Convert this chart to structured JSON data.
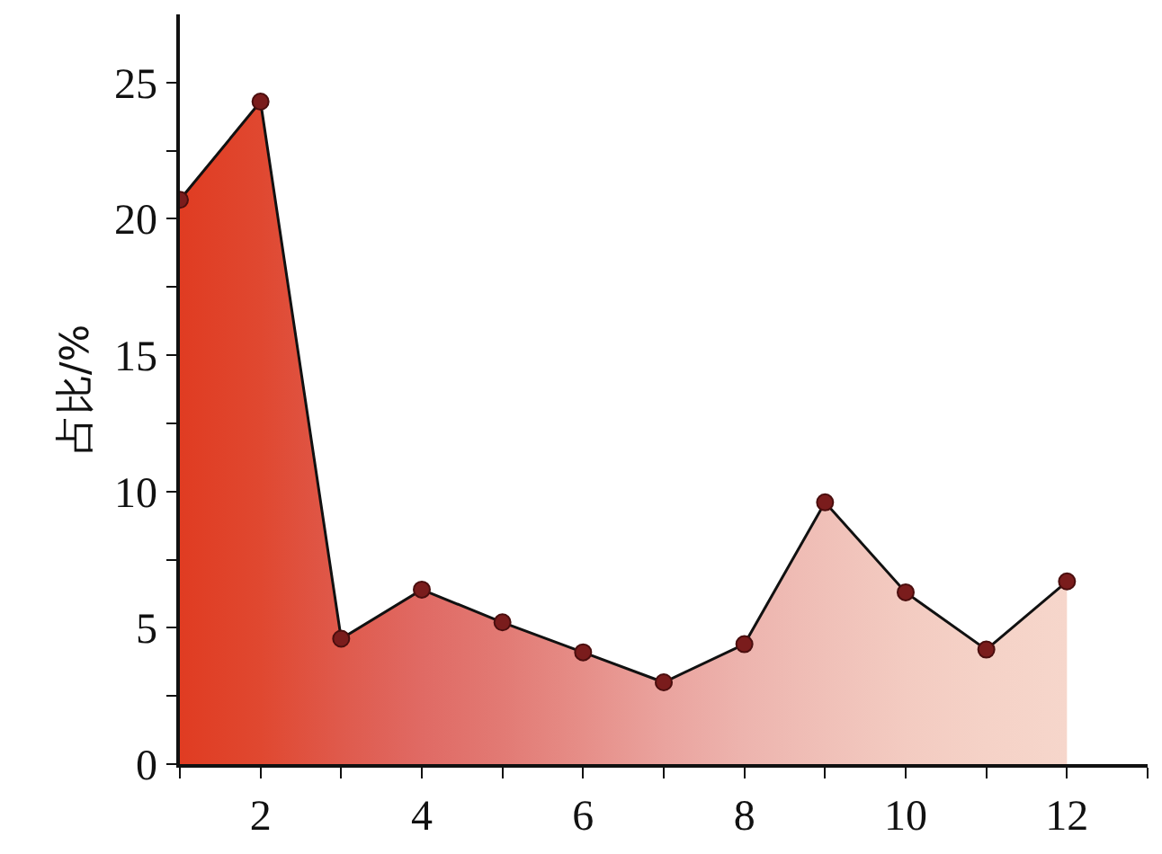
{
  "chart_data": {
    "type": "area",
    "ylabel": "占比/%",
    "x": [
      1,
      2,
      3,
      4,
      5,
      6,
      7,
      8,
      9,
      10,
      11,
      12
    ],
    "series": [
      {
        "color": "#111111",
        "colors": [
          "#e03c22",
          "#e04830",
          "#df5a4c",
          "#e06a64",
          "#e27a74",
          "#e68e88",
          "#eaa39e",
          "#edb4ae",
          "#f0c0b8",
          "#f3cbc1",
          "#f5d2c7",
          "#f6d6cb"
        ],
        "values": [
          20.7,
          24.3,
          4.6,
          6.4,
          5.2,
          4.1,
          3.0,
          4.4,
          9.6,
          6.3,
          4.2,
          6.7
        ]
      }
    ],
    "xlim": [
      1,
      13
    ],
    "xticks": [
      {
        "value": 1,
        "label": null
      },
      2,
      {
        "value": 3,
        "label": null
      },
      4,
      {
        "value": 5,
        "label": null
      },
      6,
      {
        "value": 7,
        "label": null
      },
      8,
      {
        "value": 9,
        "label": null
      },
      10,
      {
        "value": 11,
        "label": null
      },
      12,
      {
        "value": 13,
        "label": null
      }
    ],
    "ylim": [
      0,
      27.5
    ],
    "yticks": [
      0,
      {
        "value": 2.5,
        "label": null
      },
      5,
      {
        "value": 7.5,
        "label": null
      },
      10,
      {
        "value": 12.5,
        "label": null
      },
      15,
      {
        "value": 17.5,
        "label": null
      },
      20,
      {
        "value": 22.5,
        "label": null
      },
      25
    ],
    "marker": "circle",
    "line_style": "solid"
  }
}
